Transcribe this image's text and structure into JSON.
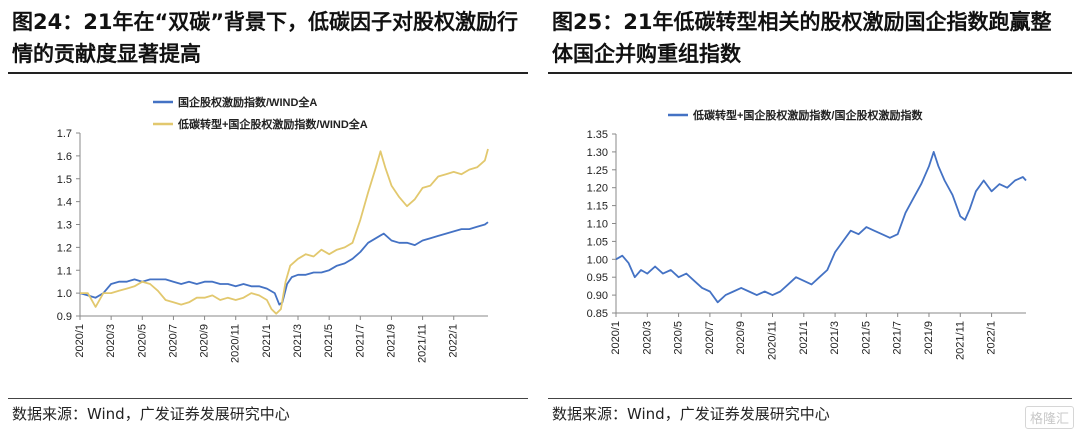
{
  "left": {
    "title": "图24：21年在“双碳”背景下，低碳因子对股权激励行情的贡献度显著提高",
    "source": "数据来源：Wind，广发证券发展研究中心"
  },
  "right": {
    "title": "图25：21年低碳转型相关的股权激励国企指数跑赢整体国企并购重组指数",
    "source": "数据来源：Wind，广发证券发展研究中心"
  },
  "watermark": "格隆汇",
  "chart_data": [
    {
      "type": "line",
      "title": "",
      "ylim": [
        0.9,
        1.7
      ],
      "yticks": [
        "0.9",
        "1.0",
        "1.1",
        "1.2",
        "1.3",
        "1.4",
        "1.5",
        "1.6",
        "1.7"
      ],
      "xticks": [
        "2020/1",
        "2020/3",
        "2020/5",
        "2020/7",
        "2020/9",
        "2020/11",
        "2021/1",
        "2021/3",
        "2021/5",
        "2021/7",
        "2021/9",
        "2021/11",
        "2022/1"
      ],
      "x_range_months": [
        0,
        26.2
      ],
      "grid": false,
      "legend_position": "top-center",
      "series": [
        {
          "name": "国企股权激励指数/WIND全A",
          "color": "#4472C4",
          "points": [
            [
              0,
              1.0
            ],
            [
              0.5,
              0.99
            ],
            [
              1,
              0.98
            ],
            [
              1.5,
              1.0
            ],
            [
              2,
              1.04
            ],
            [
              2.5,
              1.05
            ],
            [
              3,
              1.05
            ],
            [
              3.5,
              1.06
            ],
            [
              4,
              1.05
            ],
            [
              4.5,
              1.06
            ],
            [
              5,
              1.06
            ],
            [
              5.5,
              1.06
            ],
            [
              6,
              1.05
            ],
            [
              6.5,
              1.04
            ],
            [
              7,
              1.05
            ],
            [
              7.5,
              1.04
            ],
            [
              8,
              1.05
            ],
            [
              8.5,
              1.05
            ],
            [
              9,
              1.04
            ],
            [
              9.5,
              1.04
            ],
            [
              10,
              1.03
            ],
            [
              10.5,
              1.04
            ],
            [
              11,
              1.03
            ],
            [
              11.5,
              1.03
            ],
            [
              12,
              1.02
            ],
            [
              12.5,
              1.0
            ],
            [
              12.8,
              0.95
            ],
            [
              13,
              0.96
            ],
            [
              13.3,
              1.04
            ],
            [
              13.6,
              1.07
            ],
            [
              14,
              1.08
            ],
            [
              14.5,
              1.08
            ],
            [
              15,
              1.09
            ],
            [
              15.5,
              1.09
            ],
            [
              16,
              1.1
            ],
            [
              16.5,
              1.12
            ],
            [
              17,
              1.13
            ],
            [
              17.5,
              1.15
            ],
            [
              18,
              1.18
            ],
            [
              18.5,
              1.22
            ],
            [
              19,
              1.24
            ],
            [
              19.5,
              1.26
            ],
            [
              20,
              1.23
            ],
            [
              20.5,
              1.22
            ],
            [
              21,
              1.22
            ],
            [
              21.5,
              1.21
            ],
            [
              22,
              1.23
            ],
            [
              22.5,
              1.24
            ],
            [
              23,
              1.25
            ],
            [
              23.5,
              1.26
            ],
            [
              24,
              1.27
            ],
            [
              24.5,
              1.28
            ],
            [
              25,
              1.28
            ],
            [
              25.5,
              1.29
            ],
            [
              26,
              1.3
            ],
            [
              26.2,
              1.31
            ]
          ]
        },
        {
          "name": "低碳转型+国企股权激励指数/WIND全A",
          "color": "#E2C86E",
          "points": [
            [
              0,
              1.0
            ],
            [
              0.5,
              1.0
            ],
            [
              1,
              0.94
            ],
            [
              1.5,
              1.0
            ],
            [
              2,
              1.0
            ],
            [
              2.5,
              1.01
            ],
            [
              3,
              1.02
            ],
            [
              3.5,
              1.03
            ],
            [
              4,
              1.05
            ],
            [
              4.5,
              1.04
            ],
            [
              5,
              1.01
            ],
            [
              5.5,
              0.97
            ],
            [
              6,
              0.96
            ],
            [
              6.5,
              0.95
            ],
            [
              7,
              0.96
            ],
            [
              7.5,
              0.98
            ],
            [
              8,
              0.98
            ],
            [
              8.5,
              0.99
            ],
            [
              9,
              0.97
            ],
            [
              9.5,
              0.98
            ],
            [
              10,
              0.97
            ],
            [
              10.5,
              0.98
            ],
            [
              11,
              1.0
            ],
            [
              11.5,
              0.99
            ],
            [
              12,
              0.97
            ],
            [
              12.3,
              0.93
            ],
            [
              12.6,
              0.91
            ],
            [
              12.9,
              0.93
            ],
            [
              13.2,
              1.05
            ],
            [
              13.5,
              1.12
            ],
            [
              14,
              1.15
            ],
            [
              14.5,
              1.17
            ],
            [
              15,
              1.16
            ],
            [
              15.5,
              1.19
            ],
            [
              16,
              1.17
            ],
            [
              16.5,
              1.19
            ],
            [
              17,
              1.2
            ],
            [
              17.5,
              1.22
            ],
            [
              18,
              1.32
            ],
            [
              18.5,
              1.44
            ],
            [
              19,
              1.55
            ],
            [
              19.3,
              1.62
            ],
            [
              19.6,
              1.55
            ],
            [
              20,
              1.47
            ],
            [
              20.5,
              1.42
            ],
            [
              21,
              1.38
            ],
            [
              21.5,
              1.41
            ],
            [
              22,
              1.46
            ],
            [
              22.5,
              1.47
            ],
            [
              23,
              1.51
            ],
            [
              23.5,
              1.52
            ],
            [
              24,
              1.53
            ],
            [
              24.5,
              1.52
            ],
            [
              25,
              1.54
            ],
            [
              25.5,
              1.55
            ],
            [
              26,
              1.58
            ],
            [
              26.2,
              1.63
            ]
          ]
        }
      ]
    },
    {
      "type": "line",
      "title": "",
      "ylim": [
        0.85,
        1.35
      ],
      "yticks": [
        "0.85",
        "0.90",
        "0.95",
        "1.00",
        "1.05",
        "1.10",
        "1.15",
        "1.20",
        "1.25",
        "1.30",
        "1.35"
      ],
      "xticks": [
        "2020/1",
        "2020/3",
        "2020/5",
        "2020/7",
        "2020/9",
        "2020/11",
        "2021/1",
        "2021/3",
        "2021/5",
        "2021/7",
        "2021/9",
        "2021/11",
        "2022/1"
      ],
      "x_range_months": [
        0,
        26.2
      ],
      "grid": false,
      "legend_position": "top-center",
      "series": [
        {
          "name": "低碳转型+国企股权激励指数/国企股权激励指数",
          "color": "#4472C4",
          "points": [
            [
              0,
              1.0
            ],
            [
              0.4,
              1.01
            ],
            [
              0.8,
              0.99
            ],
            [
              1.2,
              0.95
            ],
            [
              1.6,
              0.97
            ],
            [
              2,
              0.96
            ],
            [
              2.5,
              0.98
            ],
            [
              3,
              0.96
            ],
            [
              3.5,
              0.97
            ],
            [
              4,
              0.95
            ],
            [
              4.5,
              0.96
            ],
            [
              5,
              0.94
            ],
            [
              5.5,
              0.92
            ],
            [
              6,
              0.91
            ],
            [
              6.5,
              0.88
            ],
            [
              7,
              0.9
            ],
            [
              7.5,
              0.91
            ],
            [
              8,
              0.92
            ],
            [
              8.5,
              0.91
            ],
            [
              9,
              0.9
            ],
            [
              9.5,
              0.91
            ],
            [
              10,
              0.9
            ],
            [
              10.5,
              0.91
            ],
            [
              11,
              0.93
            ],
            [
              11.5,
              0.95
            ],
            [
              12,
              0.94
            ],
            [
              12.5,
              0.93
            ],
            [
              13,
              0.95
            ],
            [
              13.5,
              0.97
            ],
            [
              14,
              1.02
            ],
            [
              14.5,
              1.05
            ],
            [
              15,
              1.08
            ],
            [
              15.5,
              1.07
            ],
            [
              16,
              1.09
            ],
            [
              16.5,
              1.08
            ],
            [
              17,
              1.07
            ],
            [
              17.5,
              1.06
            ],
            [
              18,
              1.07
            ],
            [
              18.5,
              1.13
            ],
            [
              19,
              1.17
            ],
            [
              19.5,
              1.21
            ],
            [
              20,
              1.26
            ],
            [
              20.3,
              1.3
            ],
            [
              20.6,
              1.26
            ],
            [
              21,
              1.22
            ],
            [
              21.5,
              1.18
            ],
            [
              22,
              1.12
            ],
            [
              22.3,
              1.11
            ],
            [
              22.6,
              1.14
            ],
            [
              23,
              1.19
            ],
            [
              23.5,
              1.22
            ],
            [
              24,
              1.19
            ],
            [
              24.5,
              1.21
            ],
            [
              25,
              1.2
            ],
            [
              25.5,
              1.22
            ],
            [
              26,
              1.23
            ],
            [
              26.2,
              1.22
            ]
          ]
        }
      ]
    }
  ]
}
